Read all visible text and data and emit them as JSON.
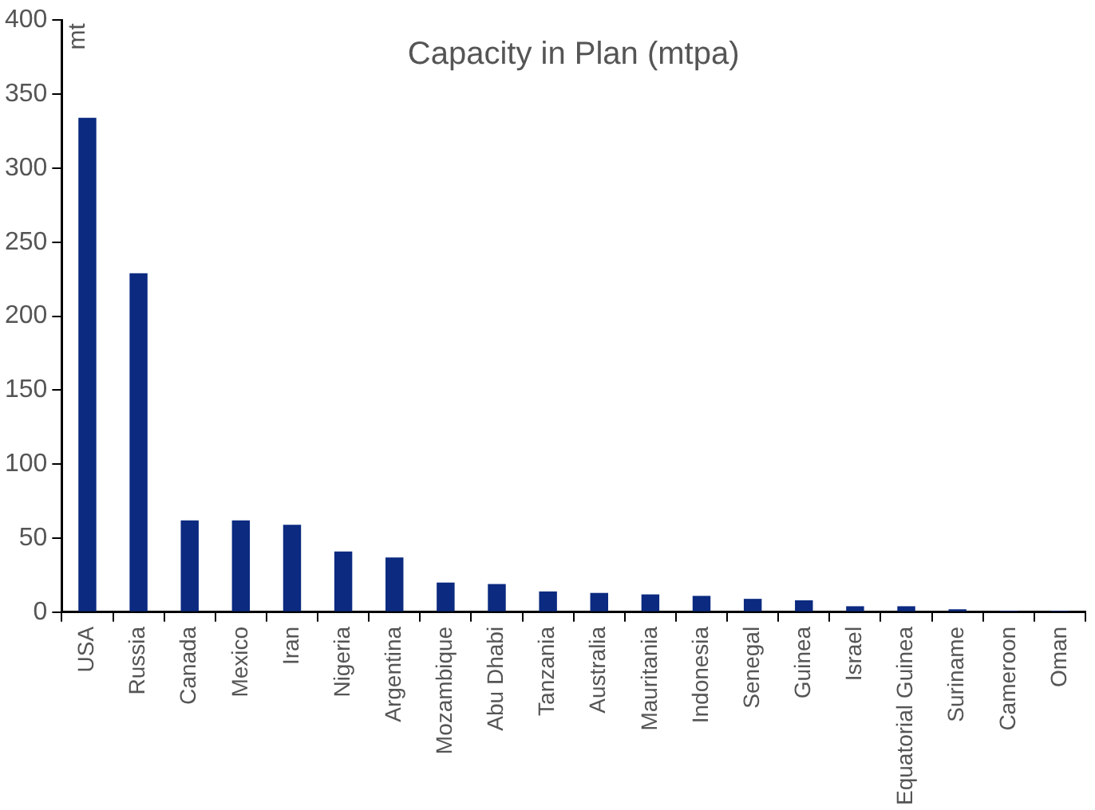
{
  "chart_data": {
    "type": "bar",
    "title": "Capacity in Plan (mtpa)",
    "ylabel": "mt",
    "categories": [
      "USA",
      "Russia",
      "Canada",
      "Mexico",
      "Iran",
      "Nigeria",
      "Argentina",
      "Mozambique",
      "Abu Dhabi",
      "Tanzania",
      "Australia",
      "Mauritania",
      "Indonesia",
      "Senegal",
      "Guinea",
      "Israel",
      "Equatorial Guinea",
      "Suriname",
      "Cameroon",
      "Oman"
    ],
    "values": [
      334,
      229,
      62,
      62,
      59,
      41,
      37,
      20,
      19,
      14,
      13,
      12,
      11,
      9,
      8,
      4,
      4,
      2,
      1,
      1
    ],
    "color": "#0b2a80",
    "ylim": [
      0,
      400
    ],
    "yticks": [
      0,
      50,
      100,
      150,
      200,
      250,
      300,
      350,
      400
    ],
    "grid": false,
    "legend": false
  }
}
